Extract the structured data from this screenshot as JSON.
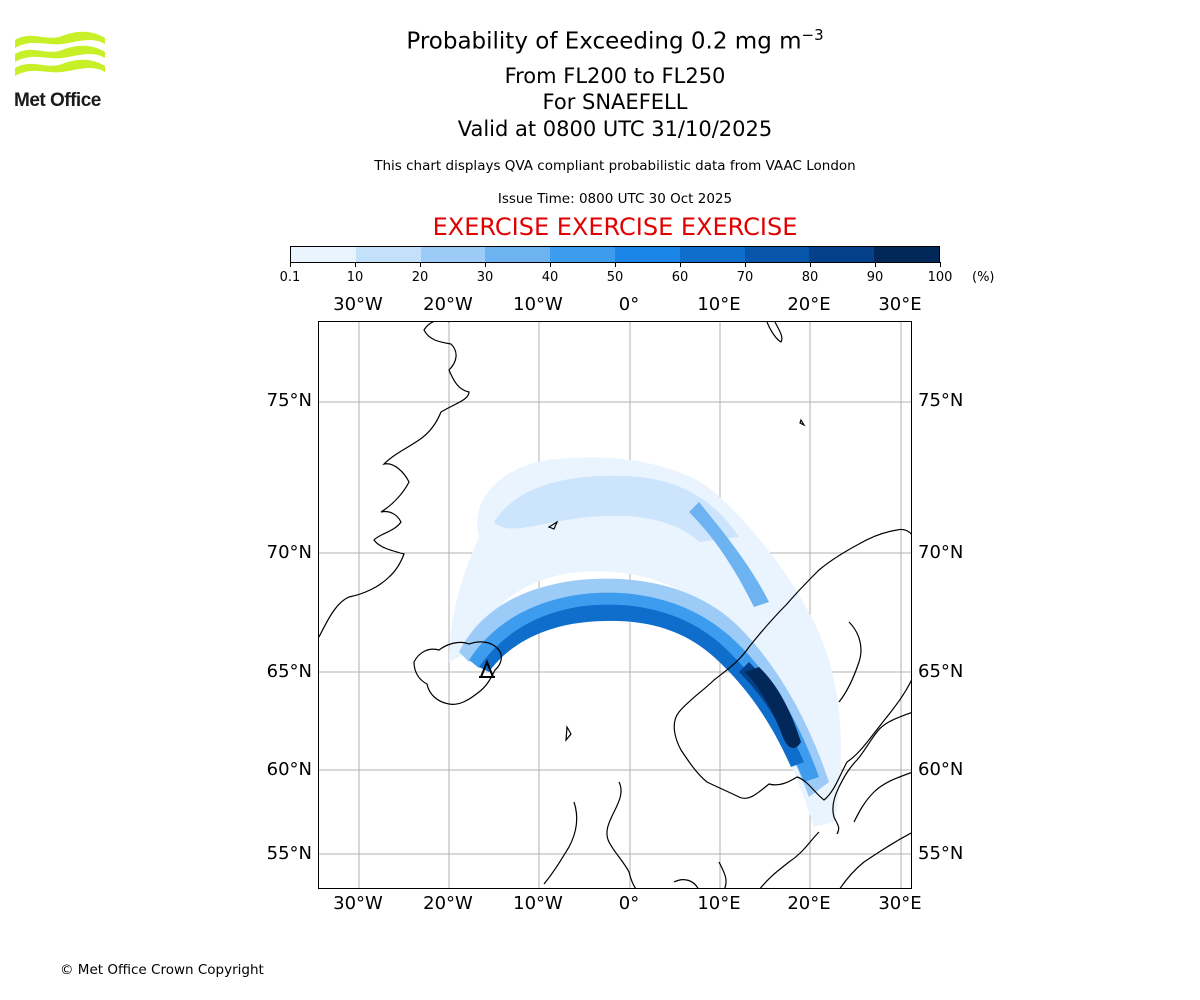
{
  "logo": {
    "text": "Met Office",
    "color": "#c8f028"
  },
  "header": {
    "title_main": "Probability of Exceeding 0.2 mg m",
    "title_sup": "−3",
    "line2": "From FL200 to FL250",
    "line3": "For SNAEFELL",
    "line4": "Valid at 0800 UTC 31/10/2025",
    "description": "This chart displays QVA compliant probabilistic data from VAAC London",
    "issue_time": "Issue Time: 0800 UTC 30 Oct 2025",
    "exercise": "EXERCISE EXERCISE EXERCISE"
  },
  "colorbar": {
    "ticks": [
      "0.1",
      "10",
      "20",
      "30",
      "40",
      "50",
      "60",
      "70",
      "80",
      "90",
      "100"
    ],
    "unit": "(%)",
    "colors": [
      "#eaf4fe",
      "#c4e1fb",
      "#9ccbf7",
      "#6db3f2",
      "#3d9cee",
      "#1c86e8",
      "#0f6dcc",
      "#0856ac",
      "#05418a",
      "#02285a"
    ]
  },
  "map": {
    "lon_labels": [
      "30°W",
      "20°W",
      "10°W",
      "0°",
      "10°E",
      "20°E",
      "30°E"
    ],
    "lat_labels": [
      "75°N",
      "70°N",
      "65°N",
      "60°N",
      "55°N"
    ],
    "source_volcano": "SNAEFELL"
  },
  "footer": {
    "copyright": "© Met Office Crown Copyright"
  }
}
